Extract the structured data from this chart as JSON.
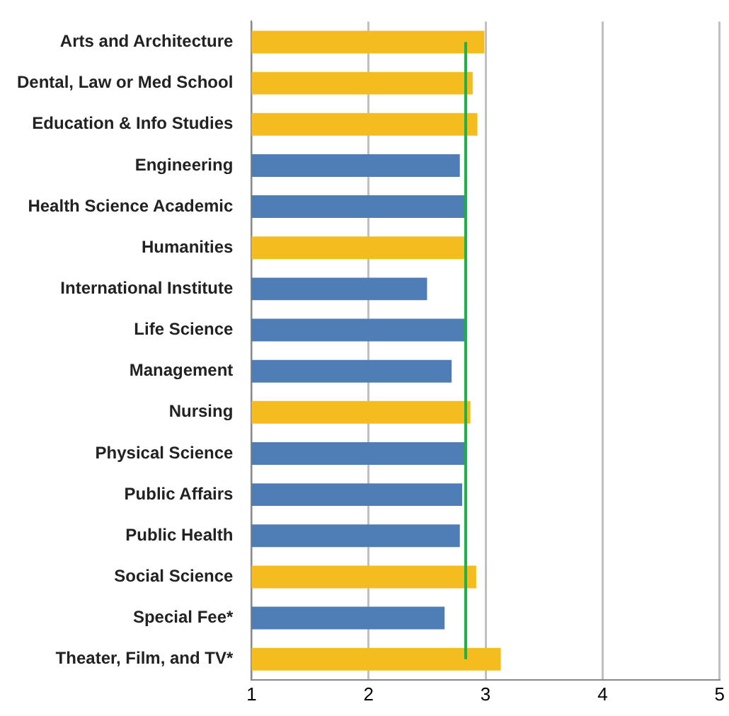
{
  "chart_data": {
    "type": "bar",
    "orientation": "horizontal",
    "categories": [
      "Arts and Architecture",
      "Dental, Law or Med School",
      "Education & Info Studies",
      "Engineering",
      "Health Science Academic",
      "Humanities",
      "International Institute",
      "Life Science",
      "Management",
      "Nursing",
      "Physical Science",
      "Public Affairs",
      "Public Health",
      "Social Science",
      "Special Fee*",
      "Theater, Film, and TV*"
    ],
    "values": [
      2.99,
      2.89,
      2.93,
      2.78,
      2.82,
      2.82,
      2.5,
      2.83,
      2.71,
      2.87,
      2.82,
      2.8,
      2.78,
      2.92,
      2.65,
      3.13
    ],
    "colors": [
      "#f5bc1f",
      "#f5bc1f",
      "#f5bc1f",
      "#4f7db6",
      "#4f7db6",
      "#f5bc1f",
      "#4f7db6",
      "#4f7db6",
      "#4f7db6",
      "#f5bc1f",
      "#4f7db6",
      "#4f7db6",
      "#4f7db6",
      "#f5bc1f",
      "#4f7db6",
      "#f5bc1f"
    ],
    "xlim": [
      1,
      5
    ],
    "xticks": [
      1,
      2,
      3,
      4,
      5
    ],
    "grid": "x",
    "legend": false,
    "ref_lines": [
      {
        "axis": "x",
        "value": 2.83,
        "color": "#1fb04a"
      }
    ]
  }
}
